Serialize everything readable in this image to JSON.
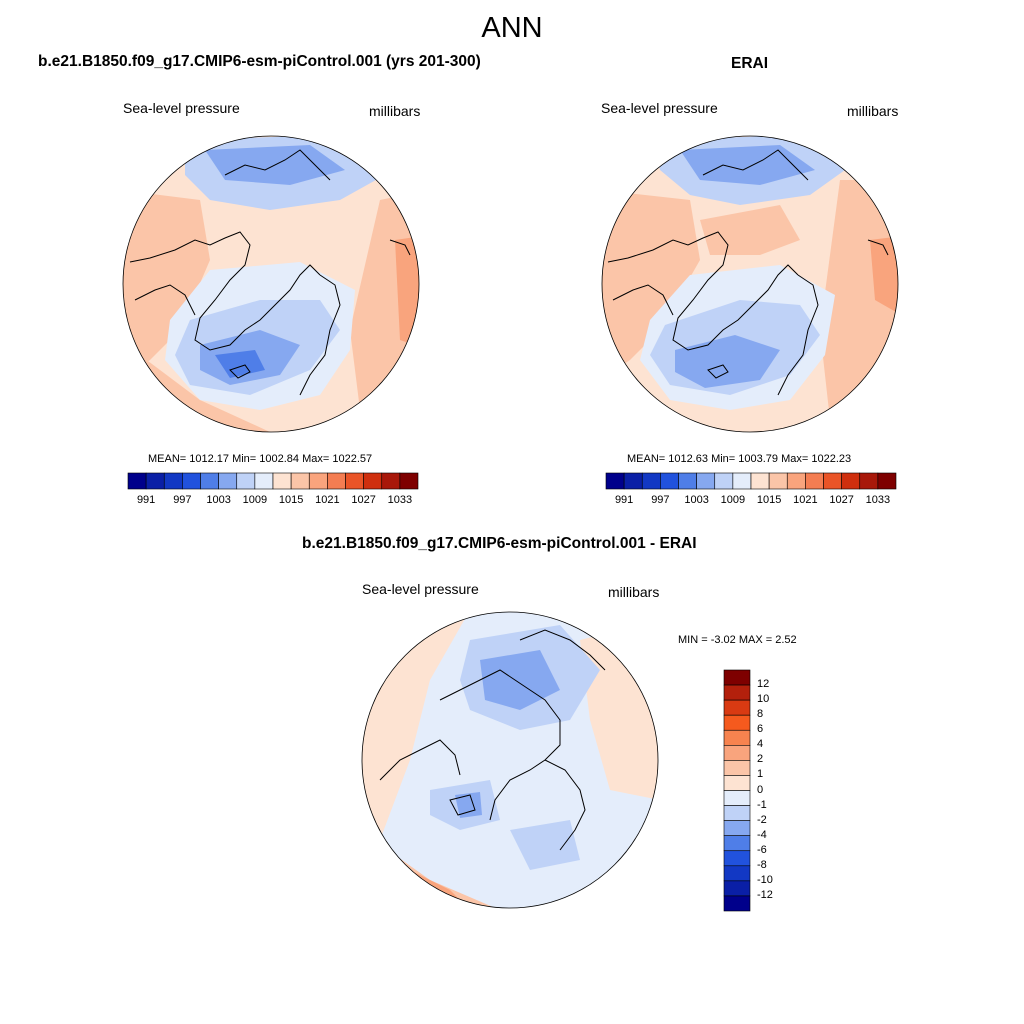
{
  "title": "ANN",
  "panels": {
    "model": {
      "title": "b.e21.B1850.f09_g17.CMIP6-esm-piControl.001 (yrs 201-300)",
      "variable": "Sea-level pressure",
      "units": "millibars",
      "stats": "MEAN= 1012.17  Min= 1002.84  Max= 1022.57"
    },
    "obs": {
      "title": "ERAI",
      "variable": "Sea-level pressure",
      "units": "millibars",
      "stats": "MEAN= 1012.63  Min= 1003.79  Max= 1022.23"
    },
    "diff": {
      "title": "b.e21.B1850.f09_g17.CMIP6-esm-piControl.001 - ERAI",
      "variable": "Sea-level pressure",
      "units": "millibars",
      "stats": "MIN =  -3.02 MAX =   2.52"
    }
  },
  "colorbar_abs": {
    "labels": [
      "991",
      "997",
      "1003",
      "1009",
      "1015",
      "1021",
      "1027",
      "1033"
    ],
    "colors": [
      "#00008b",
      "#0a1fa6",
      "#1238c4",
      "#2152dd",
      "#4f7ee8",
      "#86a8f0",
      "#bfd2f7",
      "#e4edfb",
      "#fde3d2",
      "#fbc5a8",
      "#f9a47d",
      "#f47d52",
      "#ea5427",
      "#cf2f0e",
      "#a8180a",
      "#7e0000"
    ]
  },
  "colorbar_diff": {
    "labels": [
      "12",
      "10",
      "8",
      "6",
      "4",
      "2",
      "1",
      "0",
      "-1",
      "-2",
      "-4",
      "-6",
      "-8",
      "-10",
      "-12"
    ],
    "colors": [
      "#7e0000",
      "#b3200c",
      "#d93a12",
      "#f55a1e",
      "#f7834f",
      "#f9a47d",
      "#fbc5a8",
      "#fde3d2",
      "#e4edfb",
      "#bfd2f7",
      "#86a8f0",
      "#4f7ee8",
      "#2152dd",
      "#1238c4",
      "#0a1fa6",
      "#00008b"
    ]
  }
}
